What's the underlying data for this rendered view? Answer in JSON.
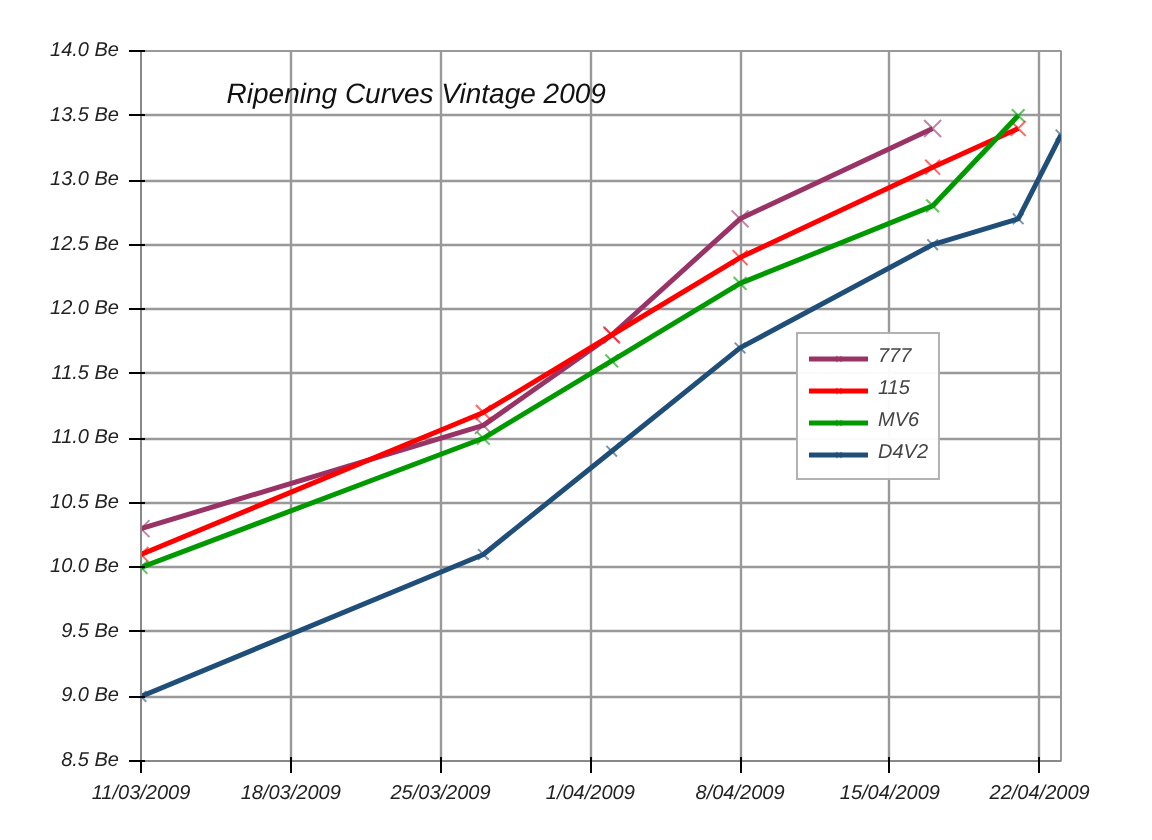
{
  "chart_data": {
    "type": "line",
    "title": "Ripening Curves Vintage 2009",
    "series": [
      {
        "name": "777",
        "color": "#993366",
        "x": [
          "2009-03-11",
          "2009-03-27",
          "2009-04-02",
          "2009-04-08",
          "2009-04-17"
        ],
        "values": [
          10.3,
          11.1,
          11.8,
          12.7,
          13.4
        ]
      },
      {
        "name": "115",
        "color": "#ff0000",
        "x": [
          "2009-03-11",
          "2009-03-27",
          "2009-04-02",
          "2009-04-08",
          "2009-04-17",
          "2009-04-21"
        ],
        "values": [
          10.1,
          11.2,
          11.8,
          12.4,
          13.1,
          13.4
        ]
      },
      {
        "name": "MV6",
        "color": "#009900",
        "x": [
          "2009-03-11",
          "2009-03-27",
          "2009-04-02",
          "2009-04-08",
          "2009-04-17",
          "2009-04-21"
        ],
        "values": [
          10.0,
          11.0,
          11.6,
          12.2,
          12.8,
          13.5
        ]
      },
      {
        "name": "D4V2",
        "color": "#1f4e79",
        "x": [
          "2009-03-11",
          "2009-03-27",
          "2009-04-02",
          "2009-04-08",
          "2009-04-17",
          "2009-04-21",
          "2009-04-23"
        ],
        "values": [
          9.0,
          10.1,
          10.9,
          11.7,
          12.5,
          12.7,
          13.35
        ]
      }
    ],
    "xlim": [
      "2009-03-11",
      "2009-04-23"
    ],
    "xticks": [
      {
        "value": "2009-03-11",
        "label": "11/03/2009"
      },
      {
        "value": "2009-03-18",
        "label": "18/03/2009"
      },
      {
        "value": "2009-03-25",
        "label": "25/03/2009"
      },
      {
        "value": "2009-04-01",
        "label": "1/04/2009"
      },
      {
        "value": "2009-04-08",
        "label": "8/04/2009"
      },
      {
        "value": "2009-04-15",
        "label": "15/04/2009"
      },
      {
        "value": "2009-04-22",
        "label": "22/04/2009"
      }
    ],
    "ylim": [
      8.5,
      14.0
    ],
    "yticks": [
      {
        "value": 8.5,
        "label": "8.5 Be"
      },
      {
        "value": 9.0,
        "label": "9.0 Be"
      },
      {
        "value": 9.5,
        "label": "9.5 Be"
      },
      {
        "value": 10.0,
        "label": "10.0 Be"
      },
      {
        "value": 10.5,
        "label": "10.5 Be"
      },
      {
        "value": 11.0,
        "label": "11.0 Be"
      },
      {
        "value": 11.5,
        "label": "11.5 Be"
      },
      {
        "value": 12.0,
        "label": "12.0 Be"
      },
      {
        "value": 12.5,
        "label": "12.5 Be"
      },
      {
        "value": 13.0,
        "label": "13.0 Be"
      },
      {
        "value": 13.5,
        "label": "13.5 Be"
      },
      {
        "value": 14.0,
        "label": "14.0 Be"
      }
    ],
    "grid": true,
    "legend": "right",
    "marker": "cross",
    "line_style": "solid"
  }
}
